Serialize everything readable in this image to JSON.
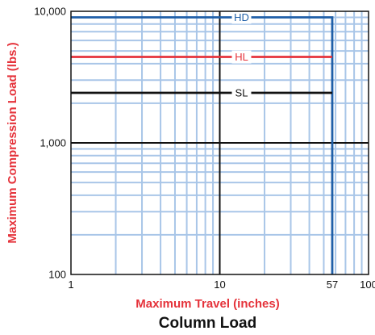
{
  "chart_data": {
    "type": "line",
    "title": "Column Load",
    "xlabel": "Maximum Travel (inches)",
    "ylabel": "Maximum Compression Load (lbs.)",
    "x_scale": "log",
    "y_scale": "log",
    "xlim": [
      1,
      100
    ],
    "ylim": [
      100,
      10000
    ],
    "x_ticks": [
      "1",
      "10",
      "100"
    ],
    "y_ticks": [
      "100",
      "1,000",
      "10,000"
    ],
    "x_annotation": "57",
    "grid": true,
    "series": [
      {
        "name": "HD",
        "color": "#1f5fa8",
        "x": [
          1,
          57,
          57
        ],
        "y": [
          9000,
          9000,
          100
        ]
      },
      {
        "name": "HL",
        "color": "#e5333b",
        "x": [
          1,
          57
        ],
        "y": [
          4500,
          4500
        ]
      },
      {
        "name": "SL",
        "color": "#111111",
        "x": [
          1,
          57
        ],
        "y": [
          2400,
          2400
        ]
      }
    ]
  }
}
